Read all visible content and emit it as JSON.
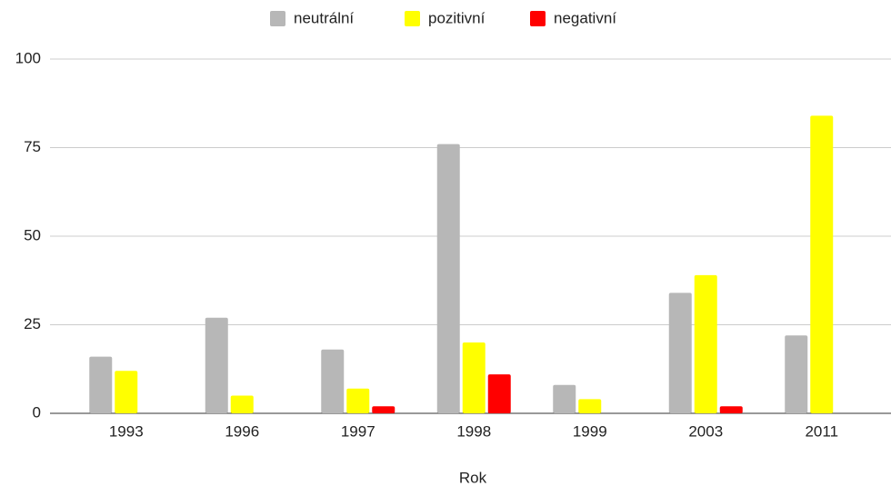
{
  "chart_data": {
    "type": "bar",
    "x_label": "Rok",
    "categories": [
      "1993",
      "1996",
      "1997",
      "1998",
      "1999",
      "2003",
      "2011"
    ],
    "series": [
      {
        "name": "neutrální",
        "color": "#b7b7b7",
        "values": [
          16,
          27,
          18,
          76,
          8,
          34,
          22
        ]
      },
      {
        "name": "pozitivní",
        "color": "#ffff00",
        "values": [
          12,
          5,
          7,
          20,
          4,
          39,
          84
        ]
      },
      {
        "name": "negativní",
        "color": "#ff0000",
        "values": [
          0,
          0,
          2,
          11,
          0,
          2,
          0
        ]
      }
    ],
    "ylim": [
      0,
      100
    ],
    "yticks": [
      0,
      25,
      50,
      75,
      100
    ],
    "grid": true,
    "legend": "top"
  }
}
